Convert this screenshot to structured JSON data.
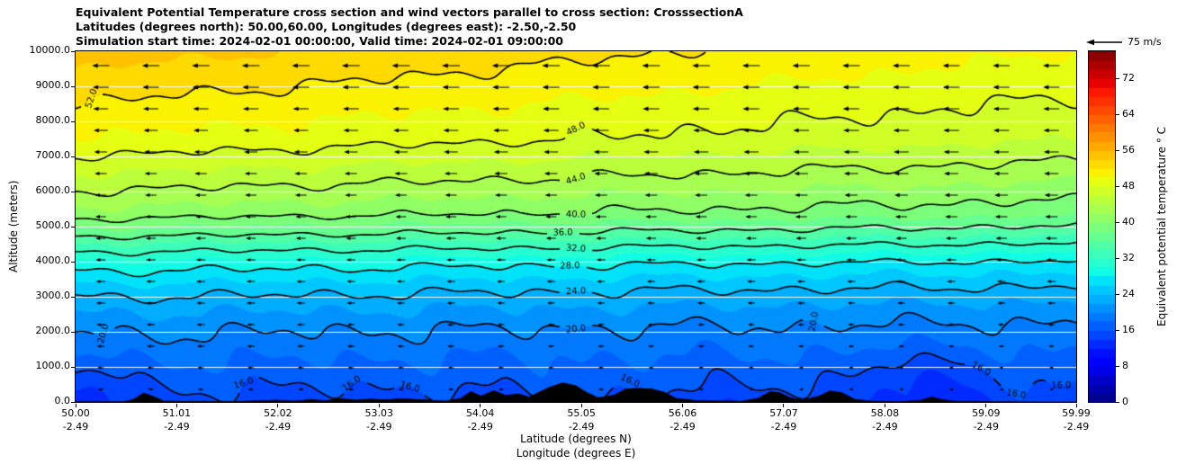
{
  "chart_data": {
    "type": "heatmap",
    "title_lines": [
      "Equivalent Potential Temperature cross section and wind vectors parallel to cross section: CrosssectionA",
      "Latitudes (degrees north): 50.00,60.00, Longitudes (degrees east): -2.50,-2.50",
      "Simulation start time: 2024-02-01 00:00:00, Valid time: 2024-02-01 09:00:00"
    ],
    "x_axis": {
      "label_lat": "Latitude (degrees N)",
      "label_lon": "Longitude (degrees E)",
      "lat_min": 50.0,
      "lat_span": 9.99,
      "ticks": [
        {
          "lat": "50.00",
          "lon": "-2.49"
        },
        {
          "lat": "51.01",
          "lon": "-2.49"
        },
        {
          "lat": "52.02",
          "lon": "-2.49"
        },
        {
          "lat": "53.03",
          "lon": "-2.49"
        },
        {
          "lat": "54.04",
          "lon": "-2.49"
        },
        {
          "lat": "55.05",
          "lon": "-2.49"
        },
        {
          "lat": "56.06",
          "lon": "-2.49"
        },
        {
          "lat": "57.07",
          "lon": "-2.49"
        },
        {
          "lat": "58.08",
          "lon": "-2.49"
        },
        {
          "lat": "59.09",
          "lon": "-2.49"
        },
        {
          "lat": "59.99",
          "lon": "-2.49"
        }
      ]
    },
    "y_axis": {
      "label": "Altitude (meters)",
      "min": 0,
      "max": 10000,
      "ticks": [
        "0.0",
        "1000.0",
        "2000.0",
        "3000.0",
        "4000.0",
        "5000.0",
        "6000.0",
        "7000.0",
        "8000.0",
        "9000.0",
        "10000.0"
      ]
    },
    "colorbar": {
      "label": "Equivalent potential temperature ° C",
      "colormap": "jet",
      "vmin": 0,
      "vmax": 78,
      "band_step": 2,
      "tick_values": [
        0,
        8,
        16,
        24,
        32,
        40,
        48,
        56,
        64,
        72
      ]
    },
    "quiver_key": {
      "speed_ms": 75,
      "label": "75 m/s"
    },
    "field": {
      "units": "degC",
      "fill_step": 2,
      "line_step": 4,
      "line_min": 16,
      "line_max": 52,
      "lateral_delta": 5.0,
      "theta_profile_alt_theta": [
        [
          0,
          15.0
        ],
        [
          600,
          16.5
        ],
        [
          1500,
          18.5
        ],
        [
          2100,
          20.0
        ],
        [
          2700,
          22.0
        ],
        [
          3150,
          24.0
        ],
        [
          3900,
          28.0
        ],
        [
          4400,
          32.0
        ],
        [
          4850,
          36.0
        ],
        [
          5400,
          40.0
        ],
        [
          6400,
          44.0
        ],
        [
          7500,
          48.0
        ],
        [
          9700,
          52.0
        ],
        [
          10000,
          52.5
        ]
      ],
      "anomalies": [
        {
          "u": 0.845,
          "ua": 0.075,
          "a": 500,
          "aa": 900,
          "amp": -2.5
        },
        {
          "u": 0.005,
          "ua": 0.05,
          "a": 400,
          "aa": 700,
          "amp": -2.2
        },
        {
          "u": 0.49,
          "ua": 0.06,
          "a": 300,
          "aa": 600,
          "amp": 1.0
        }
      ],
      "contour_labels": [
        {
          "level": 52,
          "xf": 0.016,
          "rot": -72
        },
        {
          "level": 48,
          "xf": 0.5
        },
        {
          "level": 44,
          "xf": 0.5
        },
        {
          "level": 40,
          "xf": 0.5
        },
        {
          "level": 36,
          "xf": 0.487
        },
        {
          "level": 32,
          "xf": 0.5
        },
        {
          "level": 28,
          "xf": 0.494
        },
        {
          "level": 24,
          "xf": 0.5
        },
        {
          "level": 20,
          "xf": 0.5
        },
        {
          "level": 20,
          "xf": 0.028,
          "rot": -75
        },
        {
          "level": 20,
          "xf": 0.738,
          "rot": -80
        },
        {
          "level": 16,
          "xf": 0.168
        },
        {
          "level": 16,
          "xf": 0.276
        },
        {
          "level": 16,
          "xf": 0.334
        },
        {
          "level": 16,
          "xf": 0.554
        },
        {
          "level": 16,
          "xf": 0.905
        },
        {
          "level": 16,
          "xf": 0.94
        },
        {
          "level": 16,
          "xf": 0.985
        }
      ]
    },
    "terrain_frac_m": [
      [
        0,
        10
      ],
      [
        0.048,
        12
      ],
      [
        0.058,
        80
      ],
      [
        0.068,
        260
      ],
      [
        0.078,
        160
      ],
      [
        0.088,
        30
      ],
      [
        0.12,
        18
      ],
      [
        0.16,
        22
      ],
      [
        0.2,
        55
      ],
      [
        0.218,
        35
      ],
      [
        0.235,
        70
      ],
      [
        0.25,
        45
      ],
      [
        0.265,
        105
      ],
      [
        0.28,
        55
      ],
      [
        0.295,
        90
      ],
      [
        0.31,
        65
      ],
      [
        0.325,
        105
      ],
      [
        0.34,
        75
      ],
      [
        0.355,
        55
      ],
      [
        0.37,
        35
      ],
      [
        0.385,
        110
      ],
      [
        0.395,
        300
      ],
      [
        0.405,
        170
      ],
      [
        0.418,
        330
      ],
      [
        0.43,
        190
      ],
      [
        0.443,
        240
      ],
      [
        0.453,
        150
      ],
      [
        0.463,
        280
      ],
      [
        0.474,
        430
      ],
      [
        0.487,
        550
      ],
      [
        0.5,
        470
      ],
      [
        0.51,
        290
      ],
      [
        0.522,
        130
      ],
      [
        0.538,
        200
      ],
      [
        0.55,
        380
      ],
      [
        0.563,
        400
      ],
      [
        0.576,
        370
      ],
      [
        0.588,
        290
      ],
      [
        0.6,
        110
      ],
      [
        0.62,
        45
      ],
      [
        0.645,
        35
      ],
      [
        0.665,
        28
      ],
      [
        0.682,
        110
      ],
      [
        0.694,
        300
      ],
      [
        0.704,
        270
      ],
      [
        0.714,
        130
      ],
      [
        0.726,
        55
      ],
      [
        0.743,
        170
      ],
      [
        0.754,
        320
      ],
      [
        0.766,
        270
      ],
      [
        0.779,
        75
      ],
      [
        0.8,
        18
      ],
      [
        0.825,
        14
      ],
      [
        0.845,
        55
      ],
      [
        0.856,
        150
      ],
      [
        0.866,
        70
      ],
      [
        0.882,
        18
      ],
      [
        0.92,
        10
      ],
      [
        0.96,
        8
      ],
      [
        1,
        5
      ]
    ],
    "wind": {
      "direction": "left",
      "columns": 20,
      "rows": 16,
      "ref_speed_ms": 75,
      "speed_base": 12,
      "speed_gain": 48,
      "speed_exp": 0.8
    }
  }
}
